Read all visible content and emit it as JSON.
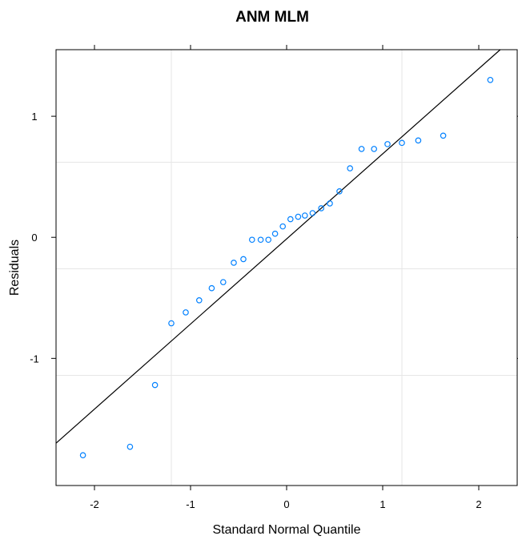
{
  "chart_data": {
    "type": "scatter",
    "title": "ANM MLM",
    "xlabel": "Standard Normal Quantile",
    "ylabel": "Residuals",
    "xlim": [
      -2.4,
      2.4
    ],
    "ylim": [
      -2.05,
      1.55
    ],
    "xticks": [
      -2,
      -1,
      0,
      1,
      2
    ],
    "yticks": [
      -1,
      0,
      1
    ],
    "grid_x": [
      -1.2,
      1.2
    ],
    "grid_y": [
      -1.14,
      -0.26,
      0.62
    ],
    "point_color": "#0080ff",
    "line_color": "#000000",
    "reference_line": {
      "intercept": -0.013,
      "slope": 0.703
    },
    "x": [
      -2.12,
      -1.63,
      -1.37,
      -1.2,
      -1.05,
      -0.91,
      -0.78,
      -0.66,
      -0.55,
      -0.45,
      -0.36,
      -0.27,
      -0.19,
      -0.12,
      -0.04,
      0.04,
      0.12,
      0.19,
      0.27,
      0.36,
      0.45,
      0.55,
      0.66,
      0.78,
      0.91,
      1.05,
      1.2,
      1.37,
      1.63,
      2.12
    ],
    "y": [
      -1.8,
      -1.73,
      -1.22,
      -0.71,
      -0.62,
      -0.52,
      -0.42,
      -0.37,
      -0.21,
      -0.18,
      -0.02,
      -0.02,
      -0.02,
      0.03,
      0.09,
      0.15,
      0.17,
      0.18,
      0.2,
      0.24,
      0.28,
      0.38,
      0.57,
      0.73,
      0.73,
      0.77,
      0.78,
      0.8,
      0.84,
      1.3
    ]
  }
}
